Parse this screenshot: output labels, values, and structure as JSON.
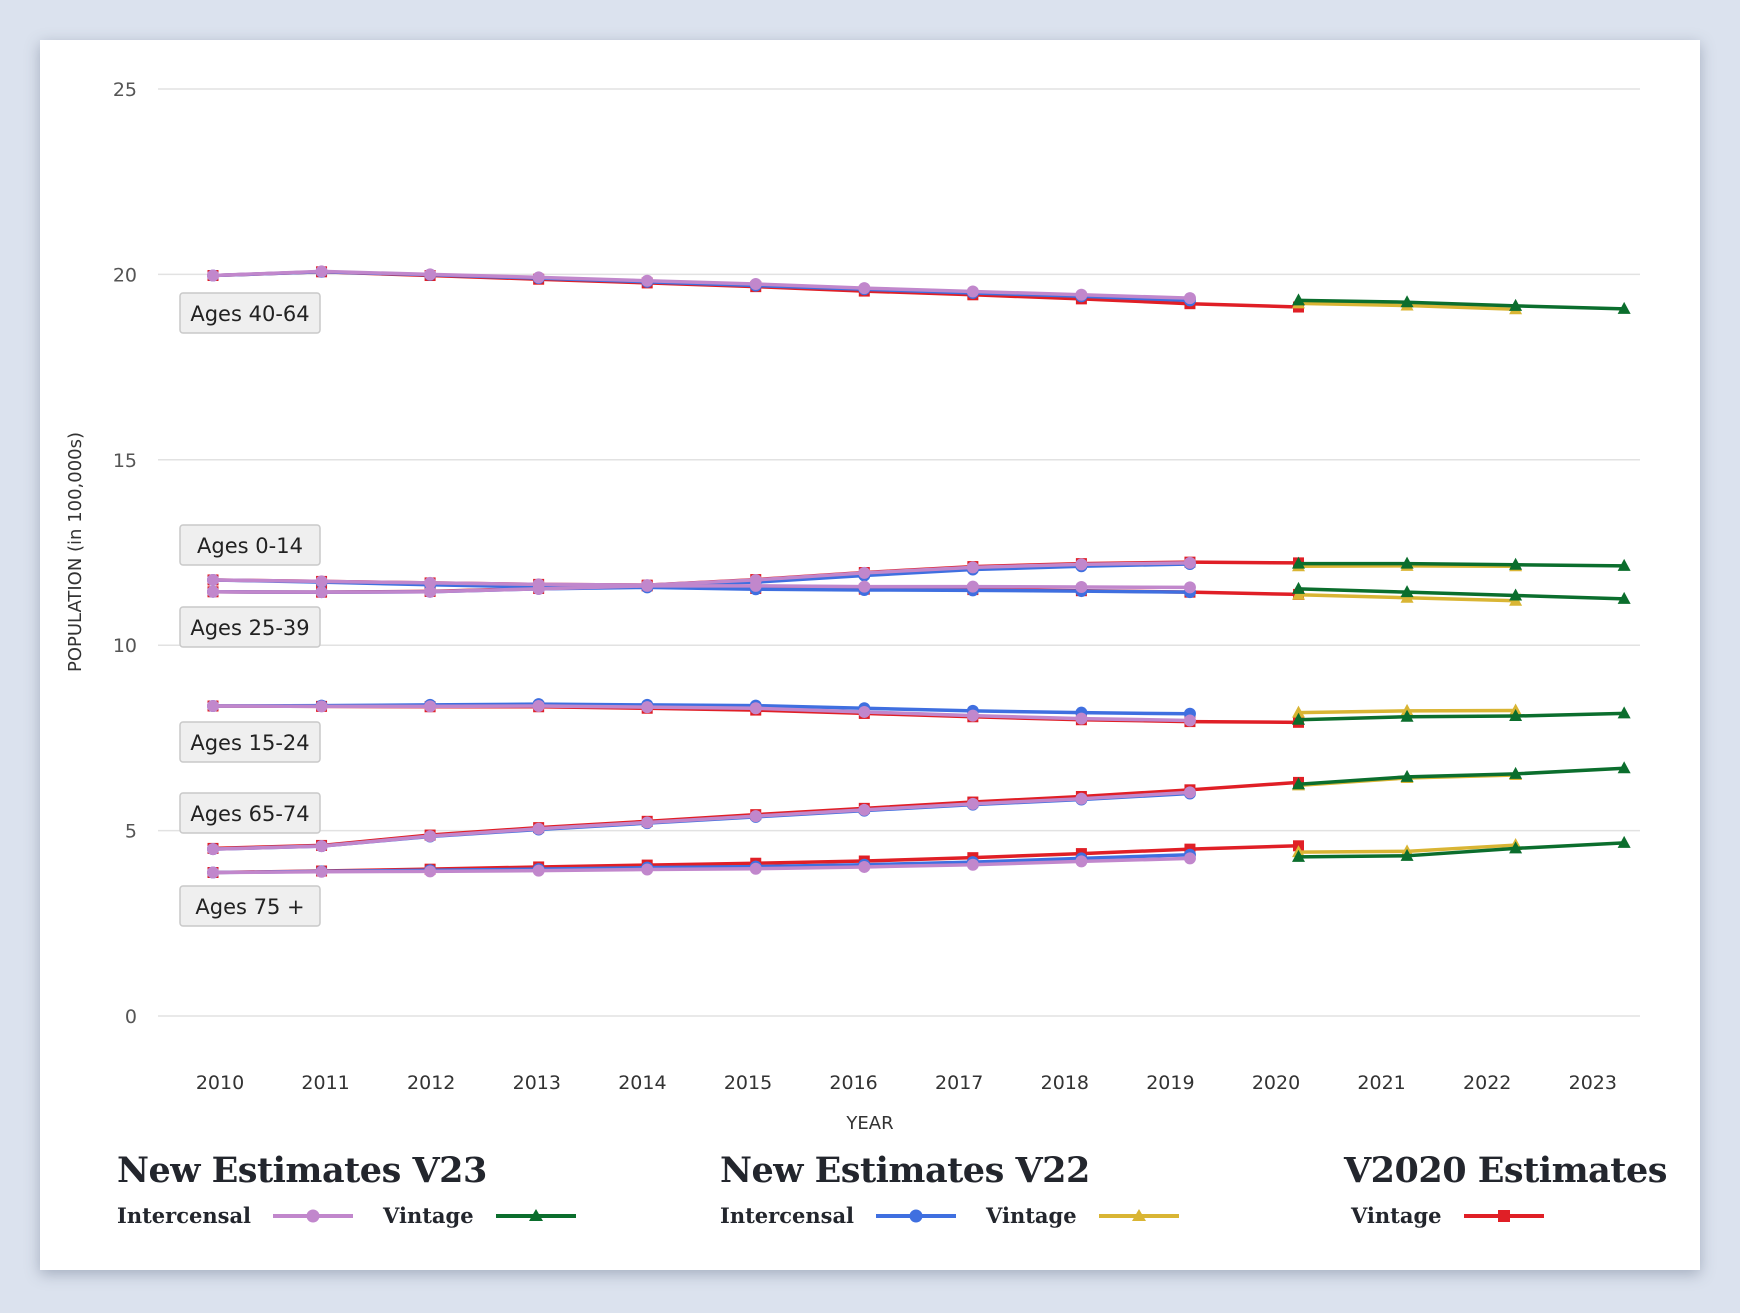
{
  "chart_data": {
    "type": "line",
    "title": "",
    "xlabel": "YEAR",
    "ylabel": "POPULATION (in 100,000s)",
    "ylim": [
      0,
      25
    ],
    "yticks": [
      0,
      5,
      10,
      15,
      20,
      25
    ],
    "x": [
      2010,
      2011,
      2012,
      2013,
      2014,
      2015,
      2016,
      2017,
      2018,
      2019,
      2020,
      2021,
      2022,
      2023
    ],
    "xticks": [
      "2010",
      "2011",
      "2012",
      "2013",
      "2014",
      "2015",
      "2016",
      "2017",
      "2018",
      "2019",
      "2020",
      "2021",
      "2022",
      "2023"
    ],
    "grid": true,
    "legend_placement": "bottom",
    "age_groups": [
      {
        "label": "Ages 40-64",
        "series": {
          "v23_intercensal": {
            "x": [
              2010,
              2011,
              2012,
              2013,
              2014,
              2015,
              2016,
              2017,
              2018,
              2019
            ],
            "values": [
              19.97,
              20.08,
              20.0,
              19.92,
              19.83,
              19.74,
              19.63,
              19.54,
              19.45,
              19.36
            ]
          },
          "v22_intercensal": {
            "x": [
              2010,
              2011,
              2012,
              2013,
              2014,
              2015,
              2016,
              2017,
              2018,
              2019
            ],
            "values": [
              19.97,
              20.07,
              19.99,
              19.9,
              19.8,
              19.7,
              19.6,
              19.5,
              19.41,
              19.3
            ]
          },
          "v2020_vintage": {
            "x": [
              2010,
              2011,
              2012,
              2013,
              2014,
              2015,
              2016,
              2017,
              2018,
              2019,
              2020
            ],
            "values": [
              19.97,
              20.07,
              19.97,
              19.87,
              19.77,
              19.67,
              19.55,
              19.45,
              19.34,
              19.21,
              19.12
            ]
          },
          "v23_vintage": {
            "x": [
              2020,
              2021,
              2022,
              2023
            ],
            "values": [
              19.3,
              19.25,
              19.15,
              19.07
            ]
          },
          "v22_vintage": {
            "x": [
              2020,
              2021,
              2022
            ],
            "values": [
              19.22,
              19.16,
              19.06
            ]
          }
        }
      },
      {
        "label": "Ages 0-14",
        "series": {
          "v23_intercensal": {
            "x": [
              2010,
              2011,
              2012,
              2013,
              2014,
              2015,
              2016,
              2017,
              2018,
              2019
            ],
            "values": [
              11.76,
              11.72,
              11.68,
              11.64,
              11.62,
              11.76,
              11.95,
              12.1,
              12.18,
              12.22
            ]
          },
          "v22_intercensal": {
            "x": [
              2010,
              2011,
              2012,
              2013,
              2014,
              2015,
              2016,
              2017,
              2018,
              2019
            ],
            "values": [
              11.76,
              11.7,
              11.63,
              11.57,
              11.6,
              11.7,
              11.88,
              12.04,
              12.13,
              12.19
            ]
          },
          "v2020_vintage": {
            "x": [
              2010,
              2011,
              2012,
              2013,
              2014,
              2015,
              2016,
              2017,
              2018,
              2019,
              2020
            ],
            "values": [
              11.76,
              11.72,
              11.68,
              11.64,
              11.62,
              11.77,
              11.96,
              12.12,
              12.2,
              12.24,
              12.22
            ]
          },
          "v23_vintage": {
            "x": [
              2020,
              2021,
              2022,
              2023
            ],
            "values": [
              12.2,
              12.2,
              12.17,
              12.14
            ]
          },
          "v22_vintage": {
            "x": [
              2020,
              2021,
              2022
            ],
            "values": [
              12.13,
              12.14,
              12.13
            ]
          }
        }
      },
      {
        "label": "Ages 25-39",
        "series": {
          "v23_intercensal": {
            "x": [
              2010,
              2011,
              2012,
              2013,
              2014,
              2015,
              2016,
              2017,
              2018,
              2019
            ],
            "values": [
              11.44,
              11.43,
              11.44,
              11.52,
              11.6,
              11.6,
              11.58,
              11.58,
              11.57,
              11.56
            ]
          },
          "v22_intercensal": {
            "x": [
              2010,
              2011,
              2012,
              2013,
              2014,
              2015,
              2016,
              2017,
              2018,
              2019
            ],
            "values": [
              11.44,
              11.43,
              11.44,
              11.52,
              11.56,
              11.51,
              11.49,
              11.48,
              11.46,
              11.43
            ]
          },
          "v2020_vintage": {
            "x": [
              2010,
              2011,
              2012,
              2013,
              2014,
              2015,
              2016,
              2017,
              2018,
              2019,
              2020
            ],
            "values": [
              11.44,
              11.43,
              11.45,
              11.53,
              11.6,
              11.53,
              11.51,
              11.5,
              11.47,
              11.43,
              11.37
            ]
          },
          "v23_vintage": {
            "x": [
              2020,
              2021,
              2022,
              2023
            ],
            "values": [
              11.52,
              11.43,
              11.34,
              11.25
            ]
          },
          "v22_vintage": {
            "x": [
              2020,
              2021,
              2022
            ],
            "values": [
              11.36,
              11.28,
              11.2
            ]
          }
        }
      },
      {
        "label": "Ages 15-24",
        "series": {
          "v23_intercensal": {
            "x": [
              2010,
              2011,
              2012,
              2013,
              2014,
              2015,
              2016,
              2017,
              2018,
              2019
            ],
            "values": [
              8.36,
              8.35,
              8.35,
              8.36,
              8.33,
              8.3,
              8.2,
              8.1,
              8.02,
              7.97
            ]
          },
          "v22_intercensal": {
            "x": [
              2010,
              2011,
              2012,
              2013,
              2014,
              2015,
              2016,
              2017,
              2018,
              2019
            ],
            "values": [
              8.36,
              8.37,
              8.39,
              8.41,
              8.39,
              8.37,
              8.3,
              8.23,
              8.18,
              8.15
            ]
          },
          "v2020_vintage": {
            "x": [
              2010,
              2011,
              2012,
              2013,
              2014,
              2015,
              2016,
              2017,
              2018,
              2019,
              2020
            ],
            "values": [
              8.36,
              8.35,
              8.34,
              8.34,
              8.3,
              8.25,
              8.16,
              8.07,
              7.99,
              7.94,
              7.92
            ]
          },
          "v23_vintage": {
            "x": [
              2020,
              2021,
              2022,
              2023
            ],
            "values": [
              7.99,
              8.07,
              8.09,
              8.16
            ]
          },
          "v22_vintage": {
            "x": [
              2020,
              2021,
              2022
            ],
            "values": [
              8.18,
              8.23,
              8.24
            ]
          }
        }
      },
      {
        "label": "Ages 65-74",
        "series": {
          "v23_intercensal": {
            "x": [
              2010,
              2011,
              2012,
              2013,
              2014,
              2015,
              2016,
              2017,
              2018,
              2019
            ],
            "values": [
              4.5,
              4.58,
              4.85,
              5.05,
              5.22,
              5.39,
              5.56,
              5.72,
              5.86,
              6.03
            ]
          },
          "v22_intercensal": {
            "x": [
              2010,
              2011,
              2012,
              2013,
              2014,
              2015,
              2016,
              2017,
              2018,
              2019
            ],
            "values": [
              4.5,
              4.58,
              4.84,
              5.03,
              5.2,
              5.37,
              5.54,
              5.7,
              5.84,
              6.0
            ]
          },
          "v2020_vintage": {
            "x": [
              2010,
              2011,
              2012,
              2013,
              2014,
              2015,
              2016,
              2017,
              2018,
              2019,
              2020
            ],
            "values": [
              4.52,
              4.6,
              4.88,
              5.08,
              5.25,
              5.43,
              5.6,
              5.77,
              5.92,
              6.1,
              6.3
            ]
          },
          "v23_vintage": {
            "x": [
              2020,
              2021,
              2022,
              2023
            ],
            "values": [
              6.25,
              6.45,
              6.53,
              6.68
            ]
          },
          "v22_vintage": {
            "x": [
              2020,
              2021,
              2022
            ],
            "values": [
              6.22,
              6.42,
              6.5
            ]
          }
        }
      },
      {
        "label": "Ages 75 +",
        "series": {
          "v23_intercensal": {
            "x": [
              2010,
              2011,
              2012,
              2013,
              2014,
              2015,
              2016,
              2017,
              2018,
              2019
            ],
            "values": [
              3.87,
              3.89,
              3.9,
              3.92,
              3.95,
              3.97,
              4.02,
              4.08,
              4.17,
              4.25
            ]
          },
          "v22_intercensal": {
            "x": [
              2010,
              2011,
              2012,
              2013,
              2014,
              2015,
              2016,
              2017,
              2018,
              2019
            ],
            "values": [
              3.87,
              3.9,
              3.93,
              3.96,
              4.0,
              4.03,
              4.08,
              4.15,
              4.25,
              4.35
            ]
          },
          "v2020_vintage": {
            "x": [
              2010,
              2011,
              2012,
              2013,
              2014,
              2015,
              2016,
              2017,
              2018,
              2019,
              2020
            ],
            "values": [
              3.87,
              3.91,
              3.96,
              4.02,
              4.07,
              4.12,
              4.18,
              4.27,
              4.38,
              4.5,
              4.59
            ]
          },
          "v23_vintage": {
            "x": [
              2020,
              2021,
              2022,
              2023
            ],
            "values": [
              4.29,
              4.32,
              4.52,
              4.67
            ]
          },
          "v22_vintage": {
            "x": [
              2020,
              2021,
              2022
            ],
            "values": [
              4.42,
              4.44,
              4.61
            ]
          }
        }
      }
    ],
    "series_styles": [
      {
        "key": "v2020_vintage",
        "name": "V2020 Estimates – Vintage",
        "color": "#e01f26",
        "marker": "square"
      },
      {
        "key": "v22_intercensal",
        "name": "New Estimates V22 – Intercensal",
        "color": "#3f6fe0",
        "marker": "circle"
      },
      {
        "key": "v22_vintage",
        "name": "New Estimates V22 – Vintage",
        "color": "#d9b534",
        "marker": "triangle"
      },
      {
        "key": "v23_intercensal",
        "name": "New Estimates V23 – Intercensal",
        "color": "#c187cc",
        "marker": "circle"
      },
      {
        "key": "v23_vintage",
        "name": "New Estimates V23 – Vintage",
        "color": "#0b6e2d",
        "marker": "triangle"
      }
    ]
  },
  "legend": {
    "groups": [
      {
        "title": "New Estimates V23",
        "items": [
          {
            "label": "Intercensal",
            "color": "#c187cc",
            "marker": "circle"
          },
          {
            "label": "Vintage",
            "color": "#0b6e2d",
            "marker": "triangle"
          }
        ]
      },
      {
        "title": "New Estimates V22",
        "items": [
          {
            "label": "Intercensal",
            "color": "#3f6fe0",
            "marker": "circle"
          },
          {
            "label": "Vintage",
            "color": "#d9b534",
            "marker": "triangle"
          }
        ]
      },
      {
        "title": "V2020 Estimates",
        "items": [
          {
            "label": "Vintage",
            "color": "#e01f26",
            "marker": "square"
          }
        ]
      }
    ]
  }
}
